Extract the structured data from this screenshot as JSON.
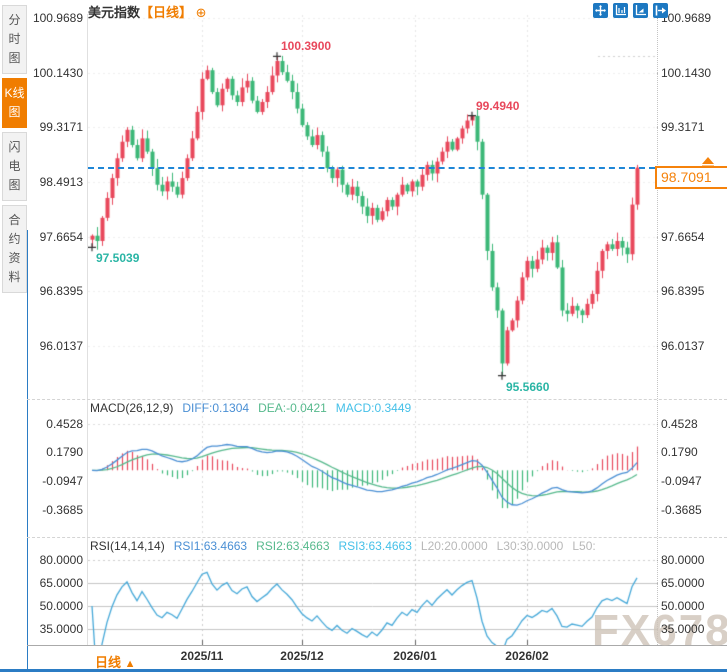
{
  "sidebar": {
    "tabs": [
      {
        "label": "分时图",
        "active": false
      },
      {
        "label": "K线图",
        "active": true
      },
      {
        "label": "闪电图",
        "active": false
      },
      {
        "label": "合约资料",
        "active": false
      }
    ]
  },
  "header": {
    "title": "美元指数",
    "period": "【日线】",
    "settings_icon": "⊕"
  },
  "toolbar": {
    "icons": [
      "crosshair-tool",
      "axis-scale",
      "chart-fit",
      "exit-chart"
    ]
  },
  "bottom_bar": {
    "period_label": "日线",
    "arrow": "▲"
  },
  "watermark": "FX678",
  "chart_data": {
    "type": "candlestick",
    "title": "美元指数 日线",
    "x_axis": {
      "labels": [
        "2025/11",
        "2025/12",
        "2026/01",
        "2026/02"
      ],
      "positions": [
        202,
        302,
        415,
        527
      ]
    },
    "price_panel": {
      "axis_labels": [
        "100.9689",
        "100.1430",
        "99.3171",
        "98.4913",
        "97.6654",
        "96.8395",
        "96.0137"
      ],
      "axis_values": [
        100.9689,
        100.143,
        99.3171,
        98.4913,
        97.6654,
        96.8395,
        96.0137
      ],
      "first_open": 97.62,
      "closes": [
        97.68,
        97.6,
        97.95,
        98.25,
        98.55,
        98.85,
        99.1,
        99.28,
        99.05,
        98.85,
        99.15,
        98.95,
        98.7,
        98.45,
        98.35,
        98.5,
        98.42,
        98.3,
        98.55,
        98.85,
        99.15,
        99.55,
        100.05,
        100.18,
        99.85,
        99.65,
        99.9,
        100.05,
        99.8,
        99.7,
        99.92,
        100.02,
        99.72,
        99.55,
        99.7,
        99.85,
        100.1,
        100.32,
        100.15,
        100.02,
        99.85,
        99.6,
        99.35,
        99.18,
        99.05,
        99.2,
        98.95,
        98.7,
        98.55,
        98.68,
        98.45,
        98.3,
        98.42,
        98.28,
        98.12,
        97.98,
        98.1,
        97.92,
        98.05,
        98.22,
        98.12,
        98.3,
        98.45,
        98.35,
        98.5,
        98.42,
        98.6,
        98.75,
        98.62,
        98.8,
        98.95,
        99.1,
        98.98,
        99.15,
        99.3,
        99.42,
        99.49,
        99.1,
        98.3,
        97.45,
        96.9,
        96.55,
        95.75,
        96.25,
        96.4,
        96.7,
        97.05,
        97.3,
        97.18,
        97.32,
        97.5,
        97.42,
        97.58,
        97.2,
        96.55,
        96.5,
        96.62,
        96.55,
        96.48,
        96.65,
        96.8,
        97.15,
        97.45,
        97.55,
        97.48,
        97.6,
        97.5,
        97.4,
        98.15,
        98.7091
      ],
      "wick_overrides": {
        "0": {
          "low": 97.5039
        },
        "37": {
          "high": 100.39
        },
        "76": {
          "high": 99.494
        },
        "82": {
          "low": 95.566
        },
        "109": {
          "high": 98.75
        }
      },
      "annotations": [
        {
          "label": "100.3900",
          "index": 37,
          "value": 100.39,
          "kind": "high"
        },
        {
          "label": "99.4940",
          "index": 76,
          "value": 99.494,
          "kind": "high"
        },
        {
          "label": "97.5039",
          "index": 0,
          "value": 97.5039,
          "kind": "low"
        },
        {
          "label": "95.5660",
          "index": 82,
          "value": 95.566,
          "kind": "low"
        }
      ],
      "current_price": {
        "label": "98.7091",
        "value": 98.7091
      },
      "up_color": "#e8485c",
      "down_color": "#3cb878",
      "high_label_color": "#e8485c",
      "low_label_color": "#2ab5a5",
      "price_line_color": "#1f86d6",
      "price_tag_color": "#f5820b"
    },
    "macd_panel": {
      "header": {
        "name": "MACD(26,12,9)",
        "diff": "DIFF:0.1304",
        "dea": "DEA:-0.0421",
        "macd": "MACD:0.3449"
      },
      "axis_labels": [
        "0.4528",
        "0.1790",
        "-0.0947",
        "-0.3685"
      ],
      "axis_values": [
        0.4528,
        0.179,
        -0.0947,
        -0.3685
      ],
      "params": {
        "fast": 12,
        "slow": 26,
        "signal": 9
      },
      "diff_color": "#4a8fd4",
      "dea_color": "#56b98c",
      "hist_up_color": "#e8485c",
      "hist_down_color": "#3cb878"
    },
    "rsi_panel": {
      "header": {
        "name": "RSI(14,14,14)",
        "rsi1": "RSI1:63.4663",
        "rsi2": "RSI2:63.4663",
        "rsi3": "RSI3:63.4663",
        "l20": "L20:20.0000",
        "l30": "L30:30.0000",
        "l50": "L50:"
      },
      "axis_labels": [
        "80.0000",
        "65.0000",
        "50.0000",
        "35.0000"
      ],
      "axis_values": [
        80,
        65,
        50,
        35
      ],
      "period": 14,
      "line_color": "#45a8d8"
    }
  }
}
